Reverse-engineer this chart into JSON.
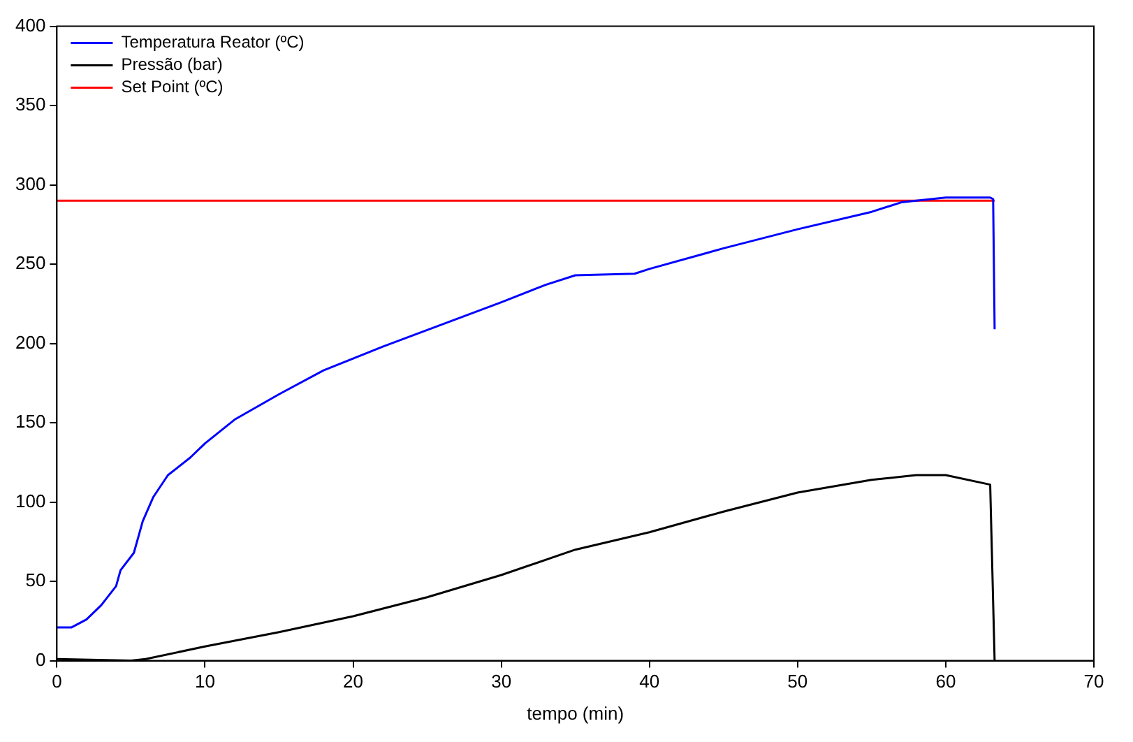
{
  "chart_data": {
    "type": "line",
    "xlabel": "tempo (min)",
    "xlim": [
      0,
      70
    ],
    "xticks": [
      0,
      10,
      20,
      30,
      40,
      50,
      60,
      70
    ],
    "ylim": [
      0,
      400
    ],
    "yticks": [
      0,
      50,
      100,
      150,
      200,
      250,
      300,
      350,
      400
    ],
    "grid": false,
    "legend": "top left",
    "marker": "none",
    "line_style": "solid",
    "series": [
      {
        "name": "Temperatura Reator (ºC)",
        "color": "#0000ff",
        "x": [
          0,
          1,
          2,
          3,
          4,
          4.3,
          5.2,
          5.8,
          6.5,
          7.5,
          9,
          10,
          12,
          15,
          18,
          22,
          26,
          30,
          33,
          35,
          39,
          40,
          45,
          50,
          55,
          57,
          60,
          63,
          63.2,
          63.3
        ],
        "values": [
          21,
          21,
          26,
          35,
          47,
          57,
          68,
          88,
          103,
          117,
          128,
          137,
          152,
          168,
          183,
          198,
          212,
          226,
          237,
          243,
          244,
          247,
          260,
          272,
          283,
          289,
          292,
          292,
          291,
          209
        ]
      },
      {
        "name": "Pressão (bar)",
        "color": "#000000",
        "x": [
          0,
          5,
          6,
          10,
          15,
          20,
          25,
          30,
          35,
          40,
          45,
          50,
          55,
          58,
          60,
          63,
          63.3
        ],
        "values": [
          1,
          0,
          1,
          9,
          18,
          28,
          40,
          54,
          70,
          81,
          94,
          106,
          114,
          117,
          117,
          111,
          0
        ]
      },
      {
        "name": "Set Point (ºC)",
        "color": "#ff0000",
        "x": [
          0,
          63.3
        ],
        "values": [
          290,
          290
        ]
      }
    ]
  }
}
